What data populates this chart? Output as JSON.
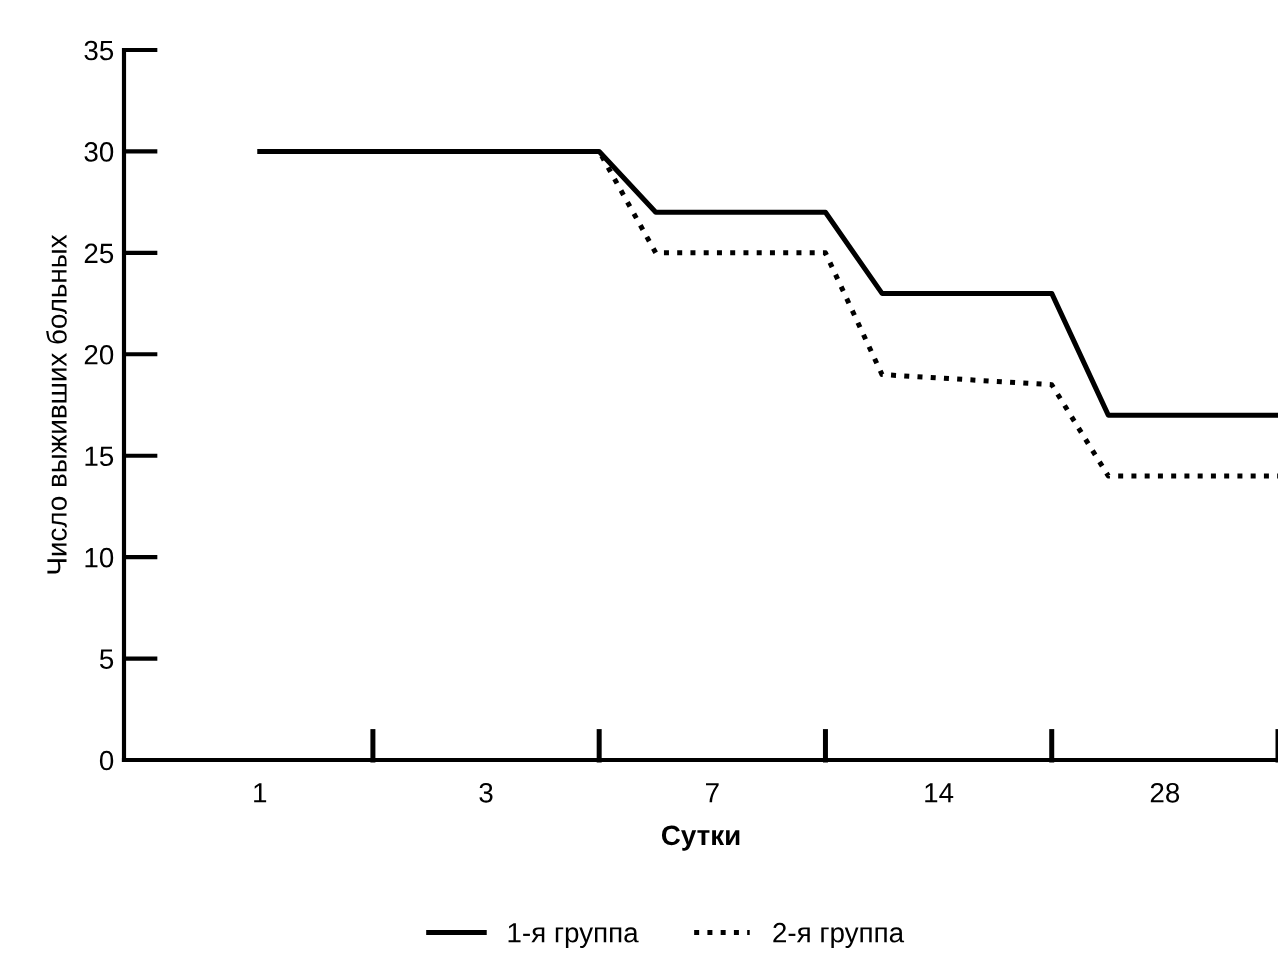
{
  "chart_data": {
    "type": "line",
    "xlabel": "Сутки",
    "ylabel": "Число выживших больных",
    "categories": [
      "1",
      null,
      null,
      null,
      "3",
      null,
      null,
      null,
      "7",
      null,
      null,
      null,
      "14",
      null,
      null,
      null,
      "28",
      null,
      null
    ],
    "series": [
      {
        "name": "1-я группа",
        "color": "#000000",
        "line_style": "solid",
        "values": [
          30,
          null,
          null,
          null,
          null,
          null,
          30,
          27,
          null,
          null,
          27,
          23,
          null,
          null,
          23,
          17,
          null,
          null,
          17
        ]
      },
      {
        "name": "2-я группа",
        "color": "#000000",
        "line_style": "dotted",
        "values": [
          30,
          null,
          null,
          null,
          null,
          null,
          30,
          25,
          null,
          null,
          25,
          19,
          null,
          null,
          18.5,
          14,
          null,
          null,
          14
        ]
      }
    ],
    "ylim": [
      0,
      35
    ],
    "yticks": [
      0,
      5,
      10,
      15,
      20,
      25,
      30,
      35
    ],
    "grid": false,
    "legend": "bottom",
    "marker": "none"
  }
}
